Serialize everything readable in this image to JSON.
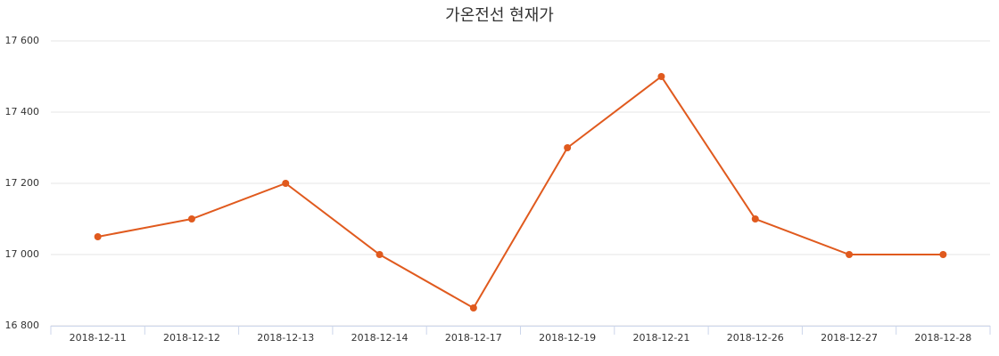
{
  "chart_data": {
    "type": "line",
    "title": "가온전선 현재가",
    "categories": [
      "2018-12-11",
      "2018-12-12",
      "2018-12-13",
      "2018-12-14",
      "2018-12-17",
      "2018-12-19",
      "2018-12-21",
      "2018-12-26",
      "2018-12-27",
      "2018-12-28"
    ],
    "values": [
      17050,
      17100,
      17200,
      17000,
      16850,
      17300,
      17500,
      17100,
      17000,
      17000
    ],
    "color": "#e05a1e",
    "ylim": [
      16800,
      17600
    ],
    "yticks": [
      {
        "value": 16800,
        "label": "16 800"
      },
      {
        "value": 17000,
        "label": "17 000"
      },
      {
        "value": 17200,
        "label": "17 200"
      },
      {
        "value": 17400,
        "label": "17 400"
      },
      {
        "value": 17600,
        "label": "17 600"
      }
    ],
    "grid": true
  }
}
